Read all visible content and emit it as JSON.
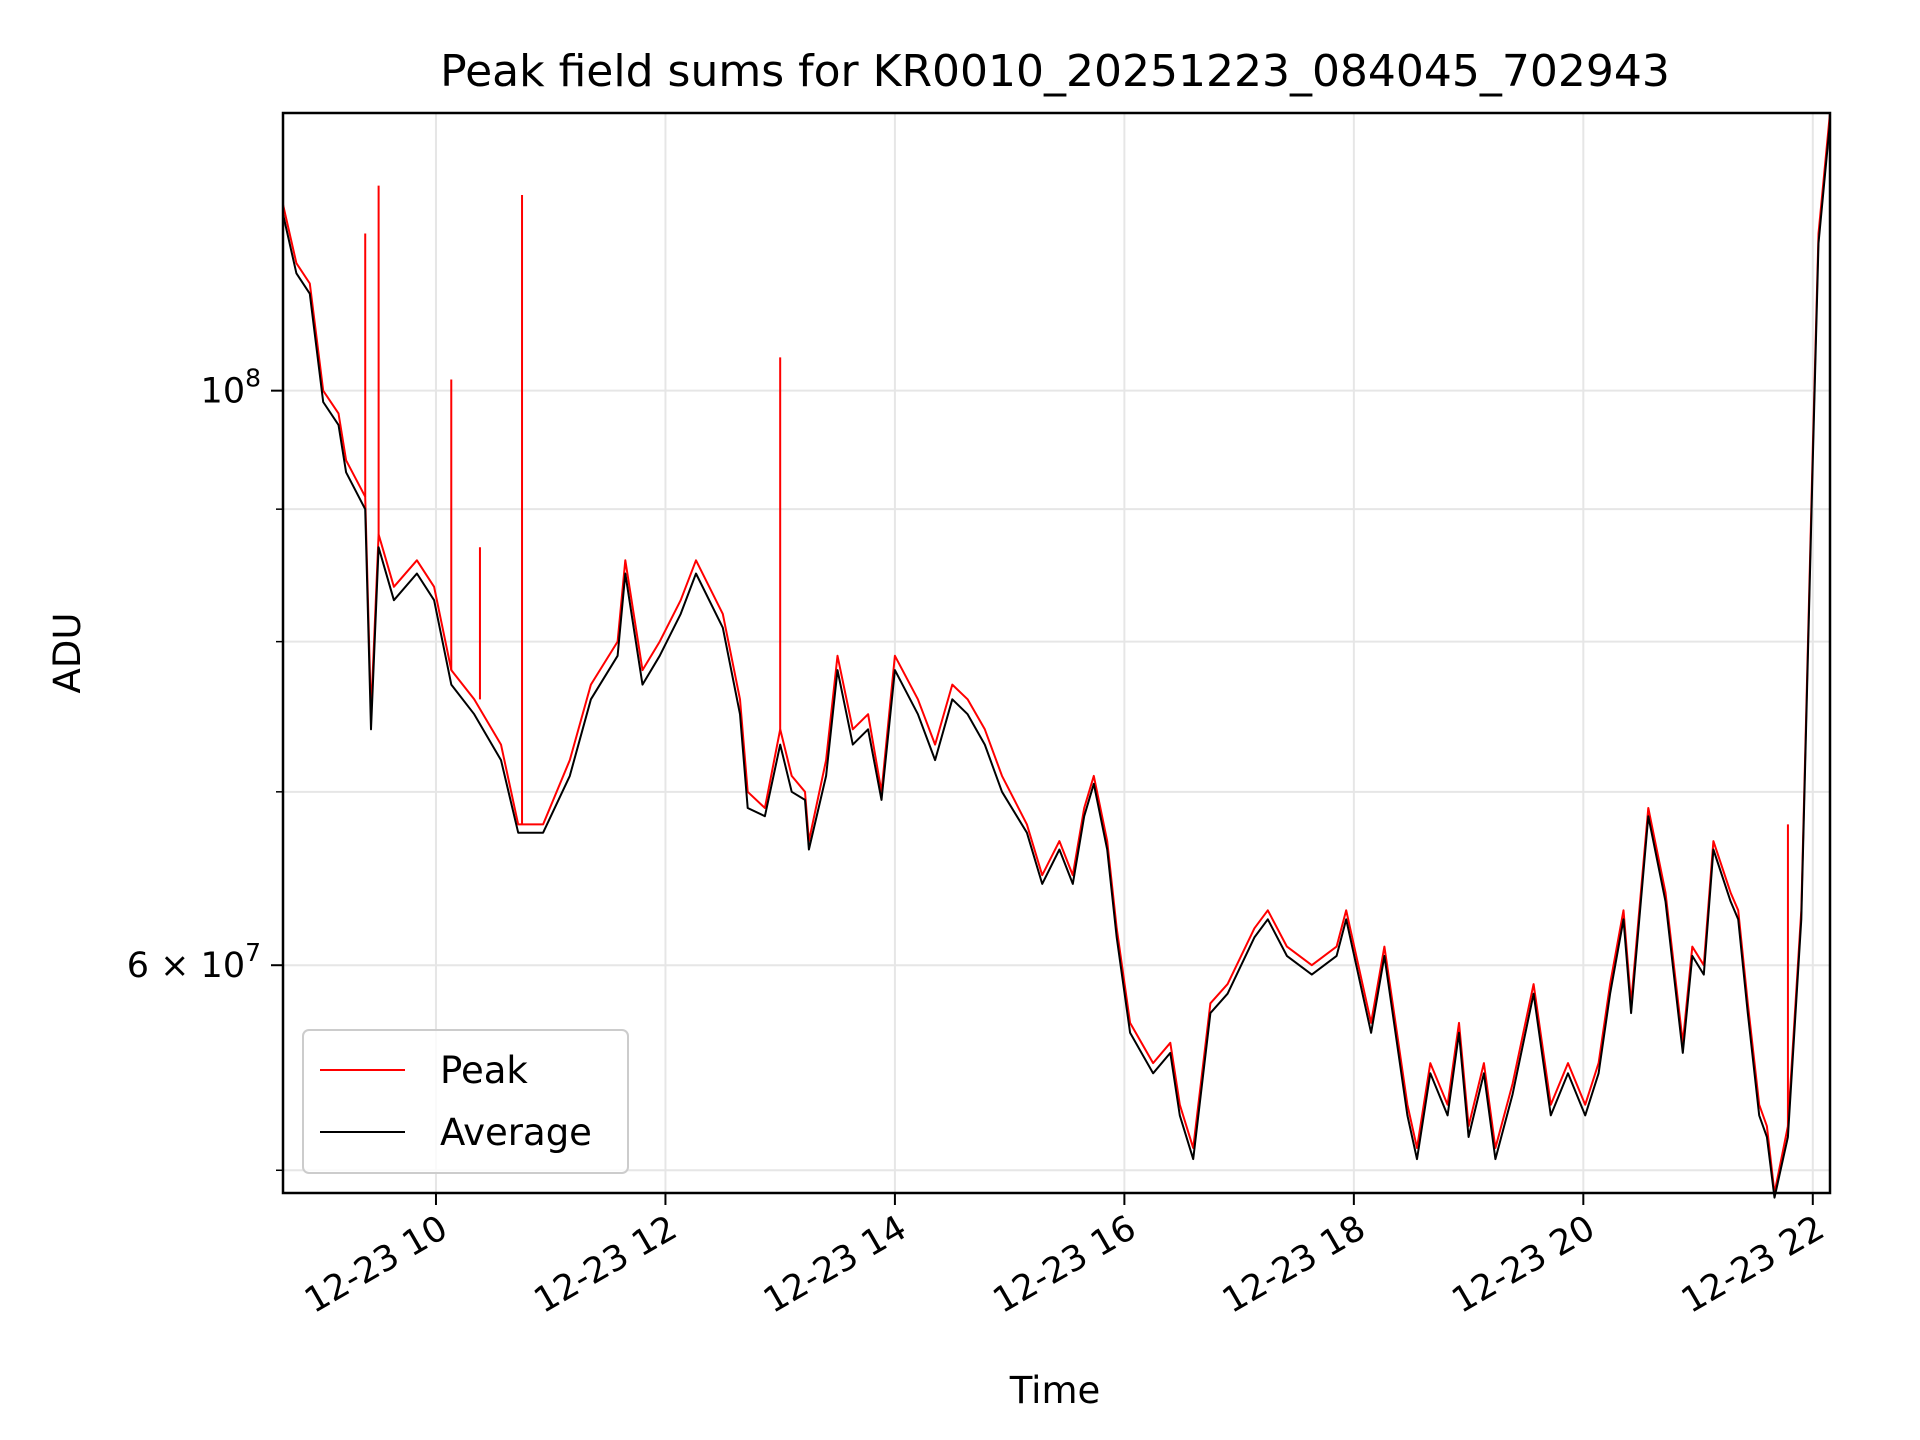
{
  "chart_data": {
    "type": "line",
    "title": "Peak field sums for KR0010_20251223_084045_702943",
    "xlabel": "Time",
    "ylabel": "ADU",
    "yscale": "log",
    "xlim": [
      "2025-12-23 08:40",
      "2025-12-23 22:09"
    ],
    "ylim": [
      49000000,
      128000000
    ],
    "grid": true,
    "legend_position": "lower-left",
    "x_ticks": [
      {
        "value": "2025-12-23 10:00",
        "label": "12-23 10"
      },
      {
        "value": "2025-12-23 12:00",
        "label": "12-23 12"
      },
      {
        "value": "2025-12-23 14:00",
        "label": "12-23 14"
      },
      {
        "value": "2025-12-23 16:00",
        "label": "12-23 16"
      },
      {
        "value": "2025-12-23 18:00",
        "label": "12-23 18"
      },
      {
        "value": "2025-12-23 20:00",
        "label": "12-23 20"
      },
      {
        "value": "2025-12-23 22:00",
        "label": "12-23 22"
      }
    ],
    "y_ticks": [
      {
        "value": 100000000,
        "label_base": "10",
        "label_exp": "8"
      },
      {
        "value": 60000000,
        "label_base": "6 × 10",
        "label_exp": "7"
      }
    ],
    "y_minor_ticks": [
      50000000,
      70000000,
      80000000,
      90000000
    ],
    "series": [
      {
        "name": "Peak",
        "color": "#ff0000",
        "points": [
          [
            "2025-12-23 08:40",
            118000000
          ],
          [
            "2025-12-23 08:47",
            112000000
          ],
          [
            "2025-12-23 08:54",
            110000000
          ],
          [
            "2025-12-23 09:01",
            100000000
          ],
          [
            "2025-12-23 09:09",
            98000000
          ],
          [
            "2025-12-23 09:13",
            94000000
          ],
          [
            "2025-12-23 09:23",
            91000000
          ],
          [
            "2025-12-23 09:26",
            75000000
          ],
          [
            "2025-12-23 09:30",
            88000000
          ],
          [
            "2025-12-23 09:38",
            84000000
          ],
          [
            "2025-12-23 09:50",
            86000000
          ],
          [
            "2025-12-23 09:59",
            84000000
          ],
          [
            "2025-12-23 10:08",
            78000000
          ],
          [
            "2025-12-23 10:20",
            76000000
          ],
          [
            "2025-12-23 10:34",
            73000000
          ],
          [
            "2025-12-23 10:43",
            68000000
          ],
          [
            "2025-12-23 10:56",
            68000000
          ],
          [
            "2025-12-23 11:10",
            72000000
          ],
          [
            "2025-12-23 11:21",
            77000000
          ],
          [
            "2025-12-23 11:35",
            80000000
          ],
          [
            "2025-12-23 11:39",
            86000000
          ],
          [
            "2025-12-23 11:48",
            78000000
          ],
          [
            "2025-12-23 11:57",
            80000000
          ],
          [
            "2025-12-23 12:08",
            83000000
          ],
          [
            "2025-12-23 12:16",
            86000000
          ],
          [
            "2025-12-23 12:30",
            82000000
          ],
          [
            "2025-12-23 12:39",
            76000000
          ],
          [
            "2025-12-23 12:43",
            70000000
          ],
          [
            "2025-12-23 12:52",
            69000000
          ],
          [
            "2025-12-23 13:00",
            74000000
          ],
          [
            "2025-12-23 13:06",
            71000000
          ],
          [
            "2025-12-23 13:13",
            70000000
          ],
          [
            "2025-12-23 13:15",
            67000000
          ],
          [
            "2025-12-23 13:24",
            72000000
          ],
          [
            "2025-12-23 13:30",
            79000000
          ],
          [
            "2025-12-23 13:38",
            74000000
          ],
          [
            "2025-12-23 13:46",
            75000000
          ],
          [
            "2025-12-23 13:53",
            70000000
          ],
          [
            "2025-12-23 14:00",
            79000000
          ],
          [
            "2025-12-23 14:12",
            76000000
          ],
          [
            "2025-12-23 14:21",
            73000000
          ],
          [
            "2025-12-23 14:30",
            77000000
          ],
          [
            "2025-12-23 14:38",
            76000000
          ],
          [
            "2025-12-23 14:47",
            74000000
          ],
          [
            "2025-12-23 14:56",
            71000000
          ],
          [
            "2025-12-23 15:09",
            68000000
          ],
          [
            "2025-12-23 15:17",
            65000000
          ],
          [
            "2025-12-23 15:26",
            67000000
          ],
          [
            "2025-12-23 15:33",
            65000000
          ],
          [
            "2025-12-23 15:39",
            69000000
          ],
          [
            "2025-12-23 15:44",
            71000000
          ],
          [
            "2025-12-23 15:51",
            67000000
          ],
          [
            "2025-12-23 15:56",
            62000000
          ],
          [
            "2025-12-23 16:03",
            57000000
          ],
          [
            "2025-12-23 16:15",
            55000000
          ],
          [
            "2025-12-23 16:24",
            56000000
          ],
          [
            "2025-12-23 16:29",
            53000000
          ],
          [
            "2025-12-23 16:36",
            51000000
          ],
          [
            "2025-12-23 16:45",
            58000000
          ],
          [
            "2025-12-23 16:54",
            59000000
          ],
          [
            "2025-12-23 17:08",
            62000000
          ],
          [
            "2025-12-23 17:15",
            63000000
          ],
          [
            "2025-12-23 17:25",
            61000000
          ],
          [
            "2025-12-23 17:38",
            60000000
          ],
          [
            "2025-12-23 17:51",
            61000000
          ],
          [
            "2025-12-23 17:56",
            63000000
          ],
          [
            "2025-12-23 18:09",
            57000000
          ],
          [
            "2025-12-23 18:16",
            61000000
          ],
          [
            "2025-12-23 18:28",
            53000000
          ],
          [
            "2025-12-23 18:33",
            51000000
          ],
          [
            "2025-12-23 18:40",
            55000000
          ],
          [
            "2025-12-23 18:49",
            53000000
          ],
          [
            "2025-12-23 18:55",
            57000000
          ],
          [
            "2025-12-23 19:00",
            52000000
          ],
          [
            "2025-12-23 19:08",
            55000000
          ],
          [
            "2025-12-23 19:14",
            51000000
          ],
          [
            "2025-12-23 19:23",
            54000000
          ],
          [
            "2025-12-23 19:34",
            59000000
          ],
          [
            "2025-12-23 19:43",
            53000000
          ],
          [
            "2025-12-23 19:52",
            55000000
          ],
          [
            "2025-12-23 20:01",
            53000000
          ],
          [
            "2025-12-23 20:08",
            55000000
          ],
          [
            "2025-12-23 20:14",
            59000000
          ],
          [
            "2025-12-23 20:21",
            63000000
          ],
          [
            "2025-12-23 20:25",
            58000000
          ],
          [
            "2025-12-23 20:34",
            69000000
          ],
          [
            "2025-12-23 20:43",
            64000000
          ],
          [
            "2025-12-23 20:52",
            56000000
          ],
          [
            "2025-12-23 20:57",
            61000000
          ],
          [
            "2025-12-23 21:03",
            60000000
          ],
          [
            "2025-12-23 21:08",
            67000000
          ],
          [
            "2025-12-23 21:17",
            64000000
          ],
          [
            "2025-12-23 21:21",
            63000000
          ],
          [
            "2025-12-23 21:26",
            58000000
          ],
          [
            "2025-12-23 21:32",
            53000000
          ],
          [
            "2025-12-23 21:36",
            52000000
          ],
          [
            "2025-12-23 21:40",
            49000000
          ],
          [
            "2025-12-23 21:47",
            52000000
          ],
          [
            "2025-12-23 21:54",
            63000000
          ],
          [
            "2025-12-23 22:00",
            95000000
          ],
          [
            "2025-12-23 22:03",
            115000000
          ],
          [
            "2025-12-23 22:09",
            128000000
          ]
        ],
        "spikes": [
          [
            "2025-12-23 09:23",
            115000000
          ],
          [
            "2025-12-23 09:30",
            120000000
          ],
          [
            "2025-12-23 10:08",
            101000000
          ],
          [
            "2025-12-23 10:23",
            87000000
          ],
          [
            "2025-12-23 10:45",
            119000000
          ],
          [
            "2025-12-23 13:00",
            103000000
          ],
          [
            "2025-12-23 21:47",
            68000000
          ]
        ]
      },
      {
        "name": "Average",
        "color": "#000000",
        "points": [
          [
            "2025-12-23 08:40",
            117000000
          ],
          [
            "2025-12-23 08:47",
            111000000
          ],
          [
            "2025-12-23 08:54",
            109000000
          ],
          [
            "2025-12-23 09:01",
            99000000
          ],
          [
            "2025-12-23 09:09",
            97000000
          ],
          [
            "2025-12-23 09:13",
            93000000
          ],
          [
            "2025-12-23 09:23",
            90000000
          ],
          [
            "2025-12-23 09:26",
            74000000
          ],
          [
            "2025-12-23 09:30",
            87000000
          ],
          [
            "2025-12-23 09:38",
            83000000
          ],
          [
            "2025-12-23 09:50",
            85000000
          ],
          [
            "2025-12-23 09:59",
            83000000
          ],
          [
            "2025-12-23 10:08",
            77000000
          ],
          [
            "2025-12-23 10:20",
            75000000
          ],
          [
            "2025-12-23 10:34",
            72000000
          ],
          [
            "2025-12-23 10:43",
            67500000
          ],
          [
            "2025-12-23 10:56",
            67500000
          ],
          [
            "2025-12-23 11:10",
            71000000
          ],
          [
            "2025-12-23 11:21",
            76000000
          ],
          [
            "2025-12-23 11:35",
            79000000
          ],
          [
            "2025-12-23 11:39",
            85000000
          ],
          [
            "2025-12-23 11:48",
            77000000
          ],
          [
            "2025-12-23 11:57",
            79000000
          ],
          [
            "2025-12-23 12:08",
            82000000
          ],
          [
            "2025-12-23 12:16",
            85000000
          ],
          [
            "2025-12-23 12:30",
            81000000
          ],
          [
            "2025-12-23 12:39",
            75000000
          ],
          [
            "2025-12-23 12:43",
            69000000
          ],
          [
            "2025-12-23 12:52",
            68500000
          ],
          [
            "2025-12-23 13:00",
            73000000
          ],
          [
            "2025-12-23 13:06",
            70000000
          ],
          [
            "2025-12-23 13:13",
            69500000
          ],
          [
            "2025-12-23 13:15",
            66500000
          ],
          [
            "2025-12-23 13:24",
            71000000
          ],
          [
            "2025-12-23 13:30",
            78000000
          ],
          [
            "2025-12-23 13:38",
            73000000
          ],
          [
            "2025-12-23 13:46",
            74000000
          ],
          [
            "2025-12-23 13:53",
            69500000
          ],
          [
            "2025-12-23 14:00",
            78000000
          ],
          [
            "2025-12-23 14:12",
            75000000
          ],
          [
            "2025-12-23 14:21",
            72000000
          ],
          [
            "2025-12-23 14:30",
            76000000
          ],
          [
            "2025-12-23 14:38",
            75000000
          ],
          [
            "2025-12-23 14:47",
            73000000
          ],
          [
            "2025-12-23 14:56",
            70000000
          ],
          [
            "2025-12-23 15:09",
            67500000
          ],
          [
            "2025-12-23 15:17",
            64500000
          ],
          [
            "2025-12-23 15:26",
            66500000
          ],
          [
            "2025-12-23 15:33",
            64500000
          ],
          [
            "2025-12-23 15:39",
            68500000
          ],
          [
            "2025-12-23 15:44",
            70500000
          ],
          [
            "2025-12-23 15:51",
            66500000
          ],
          [
            "2025-12-23 15:56",
            61500000
          ],
          [
            "2025-12-23 16:03",
            56500000
          ],
          [
            "2025-12-23 16:15",
            54500000
          ],
          [
            "2025-12-23 16:24",
            55500000
          ],
          [
            "2025-12-23 16:29",
            52500000
          ],
          [
            "2025-12-23 16:36",
            50500000
          ],
          [
            "2025-12-23 16:45",
            57500000
          ],
          [
            "2025-12-23 16:54",
            58500000
          ],
          [
            "2025-12-23 17:08",
            61500000
          ],
          [
            "2025-12-23 17:15",
            62500000
          ],
          [
            "2025-12-23 17:25",
            60500000
          ],
          [
            "2025-12-23 17:38",
            59500000
          ],
          [
            "2025-12-23 17:51",
            60500000
          ],
          [
            "2025-12-23 17:56",
            62500000
          ],
          [
            "2025-12-23 18:09",
            56500000
          ],
          [
            "2025-12-23 18:16",
            60500000
          ],
          [
            "2025-12-23 18:28",
            52500000
          ],
          [
            "2025-12-23 18:33",
            50500000
          ],
          [
            "2025-12-23 18:40",
            54500000
          ],
          [
            "2025-12-23 18:49",
            52500000
          ],
          [
            "2025-12-23 18:55",
            56500000
          ],
          [
            "2025-12-23 19:00",
            51500000
          ],
          [
            "2025-12-23 19:08",
            54500000
          ],
          [
            "2025-12-23 19:14",
            50500000
          ],
          [
            "2025-12-23 19:23",
            53500000
          ],
          [
            "2025-12-23 19:34",
            58500000
          ],
          [
            "2025-12-23 19:43",
            52500000
          ],
          [
            "2025-12-23 19:52",
            54500000
          ],
          [
            "2025-12-23 20:01",
            52500000
          ],
          [
            "2025-12-23 20:08",
            54500000
          ],
          [
            "2025-12-23 20:14",
            58500000
          ],
          [
            "2025-12-23 20:21",
            62500000
          ],
          [
            "2025-12-23 20:25",
            57500000
          ],
          [
            "2025-12-23 20:34",
            68500000
          ],
          [
            "2025-12-23 20:43",
            63500000
          ],
          [
            "2025-12-23 20:52",
            55500000
          ],
          [
            "2025-12-23 20:57",
            60500000
          ],
          [
            "2025-12-23 21:03",
            59500000
          ],
          [
            "2025-12-23 21:08",
            66500000
          ],
          [
            "2025-12-23 21:17",
            63500000
          ],
          [
            "2025-12-23 21:21",
            62500000
          ],
          [
            "2025-12-23 21:26",
            57500000
          ],
          [
            "2025-12-23 21:32",
            52500000
          ],
          [
            "2025-12-23 21:36",
            51500000
          ],
          [
            "2025-12-23 21:40",
            48800000
          ],
          [
            "2025-12-23 21:47",
            51500000
          ],
          [
            "2025-12-23 21:54",
            62500000
          ],
          [
            "2025-12-23 22:00",
            94000000
          ],
          [
            "2025-12-23 22:03",
            114000000
          ],
          [
            "2025-12-23 22:09",
            127000000
          ]
        ]
      }
    ]
  }
}
